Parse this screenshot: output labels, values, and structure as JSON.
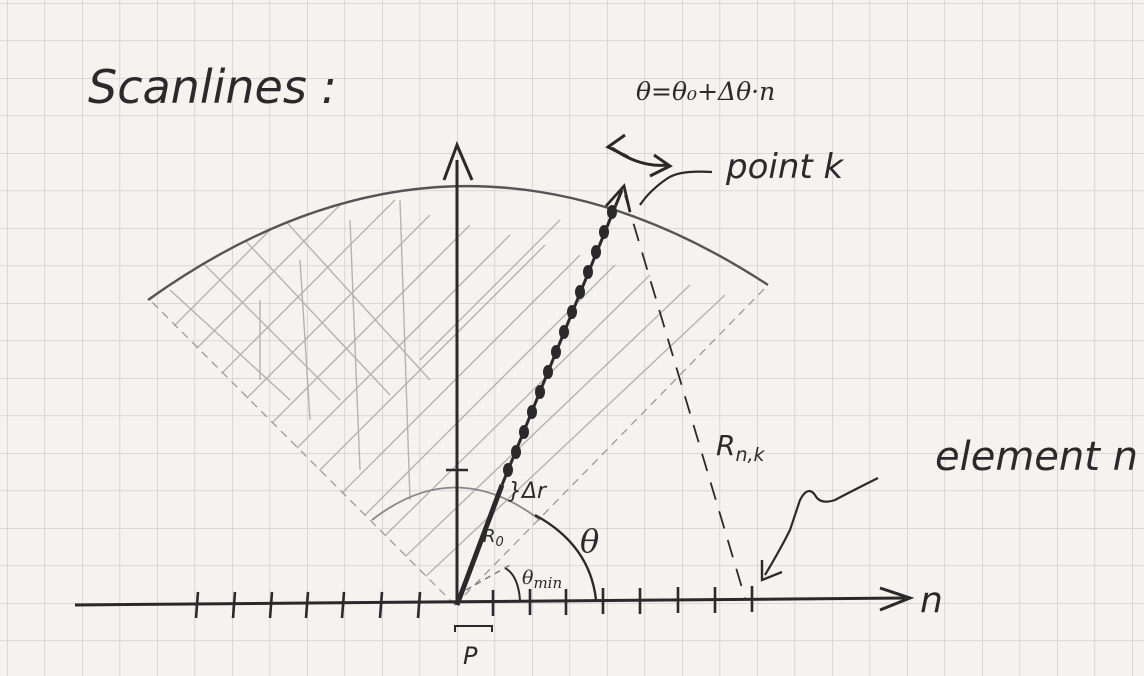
{
  "title": "Scanlines :",
  "formula": "θ=θ₀+Δθ·n",
  "labels": {
    "point_k": "point k",
    "element_n": "element n",
    "r_nk": "R",
    "r_nk_sub": "n,k",
    "theta": "θ",
    "theta_min": "θ",
    "theta_min_sub": "min",
    "delta_r": "}Δr",
    "r0": "R",
    "r0_sub": "0",
    "p": "P",
    "n_axis": "n"
  },
  "colors": {
    "ink": "#2a2a2a",
    "grid": "#c9c9c9",
    "paper": "#f4f3ef",
    "hatch": "#a9a9a9"
  }
}
